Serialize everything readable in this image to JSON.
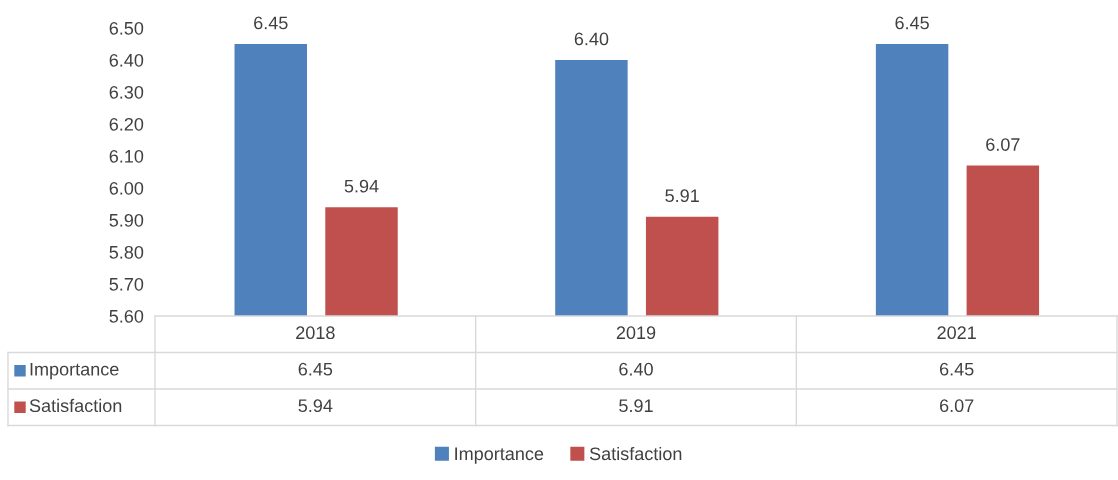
{
  "chart_data": {
    "type": "bar",
    "categories": [
      "2018",
      "2019",
      "2021"
    ],
    "series": [
      {
        "name": "Importance",
        "color": "#4f81bd",
        "values": [
          6.45,
          6.4,
          6.45
        ],
        "value_labels": [
          "6.45",
          "6.40",
          "6.45"
        ]
      },
      {
        "name": "Satisfaction",
        "color": "#c0504d",
        "values": [
          5.94,
          5.91,
          6.07
        ],
        "value_labels": [
          "5.94",
          "5.91",
          "6.07"
        ]
      }
    ],
    "ylim": [
      5.6,
      6.5
    ],
    "yticks": [
      {
        "value": 5.6,
        "label": "5.60"
      },
      {
        "value": 5.7,
        "label": "5.70"
      },
      {
        "value": 5.8,
        "label": "5.80"
      },
      {
        "value": 5.9,
        "label": "5.90"
      },
      {
        "value": 6.0,
        "label": "6.00"
      },
      {
        "value": 6.1,
        "label": "6.10"
      },
      {
        "value": 6.2,
        "label": "6.20"
      },
      {
        "value": 6.3,
        "label": "6.30"
      },
      {
        "value": 6.4,
        "label": "6.40"
      },
      {
        "value": 6.5,
        "label": "6.50"
      }
    ],
    "grid": false,
    "legend": "bottom"
  }
}
